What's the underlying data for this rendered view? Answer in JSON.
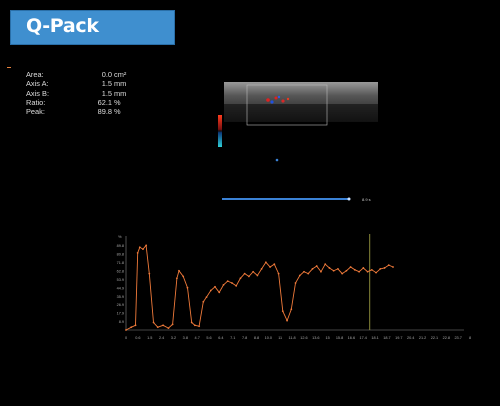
{
  "header": {
    "title": "Q-Pack"
  },
  "metrics": [
    {
      "label": "Area:",
      "value": "0.0",
      "unit": "cm²"
    },
    {
      "label": "Axis A:",
      "value": "1.5",
      "unit": "mm"
    },
    {
      "label": "Axis B:",
      "value": "1.5",
      "unit": "mm"
    },
    {
      "label": "Ratio:",
      "value": "62.1",
      "unit": "%"
    },
    {
      "label": "Peak:",
      "value": "89.8",
      "unit": "%"
    }
  ],
  "ultrasound": {
    "cine_label": "8.9 s"
  },
  "colors": {
    "trace": "#f07a3a",
    "cursor": "#8a8a3a",
    "progress": "#3b82d6",
    "title_bg": "#3f8fcf"
  },
  "chart_data": {
    "type": "line",
    "title": "",
    "xlabel": "",
    "ylabel": "",
    "y_unit_label": "%",
    "ylim": [
      0,
      100
    ],
    "xlim": [
      0,
      31.9
    ],
    "y_ticks": [
      89.8,
      80.8,
      71.8,
      62.8,
      53.9,
      44.9,
      35.9,
      26.9,
      17.9,
      8.9
    ],
    "x_ticks": [
      "0",
      "0.6",
      "1.5",
      "2.4",
      "3.2",
      "3.8",
      "4.7",
      "5.6",
      "6.4",
      "7.1",
      "7.8",
      "8.8",
      "10.0",
      "11",
      "11.8",
      "12.6",
      "13.6",
      "15",
      "15.8",
      "16.6",
      "17.4",
      "18.1",
      "18.7",
      "19.7",
      "20.4",
      "21.2",
      "22.1",
      "22.8",
      "23.7",
      "8"
    ],
    "cursor_x": 23.0,
    "series": [
      {
        "x": [
          0,
          0.5,
          0.9,
          1.1,
          1.3,
          1.6,
          1.9,
          2.2,
          2.6,
          3.0,
          3.5,
          4.0,
          4.4,
          4.8,
          5.0,
          5.4,
          5.8,
          6.2,
          6.5,
          6.9,
          7.3,
          7.6,
          8.0,
          8.4,
          8.8,
          9.2,
          9.6,
          10.0,
          10.4,
          10.8,
          11.2,
          11.6,
          12.0,
          12.4,
          12.8,
          13.2,
          13.6,
          14.0,
          14.4,
          14.8,
          15.2,
          15.6,
          16.0,
          16.4,
          16.8,
          17.2,
          17.6,
          18.0,
          18.4,
          18.8,
          19.2,
          19.6,
          20.0,
          20.4,
          20.8,
          21.2,
          21.6,
          22.0,
          22.4,
          22.8,
          23.2,
          23.6,
          24.0,
          24.4,
          24.8,
          25.2
        ],
        "y": [
          0,
          3,
          5,
          82,
          88,
          86,
          90,
          60,
          8,
          3,
          5,
          2,
          6,
          55,
          63,
          57,
          45,
          8,
          5,
          4,
          30,
          35,
          42,
          46,
          40,
          48,
          52,
          50,
          47,
          55,
          60,
          57,
          62,
          58,
          65,
          72,
          67,
          70,
          60,
          20,
          10,
          22,
          50,
          58,
          62,
          60,
          65,
          68,
          62,
          70,
          66,
          63,
          65,
          60,
          63,
          67,
          64,
          62,
          66,
          62,
          64,
          61,
          65,
          66,
          69,
          67
        ]
      }
    ]
  }
}
